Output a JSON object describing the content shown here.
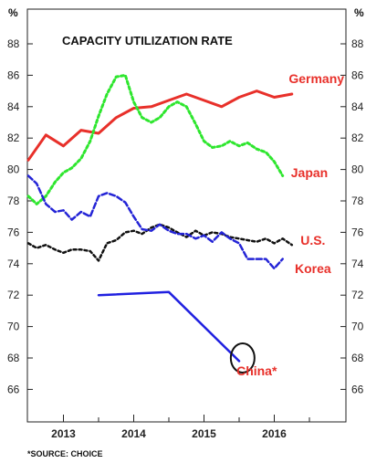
{
  "chart_data": {
    "type": "line",
    "title": "CAPACITY UTILIZATION RATE",
    "unit_left": "%",
    "unit_right": "%",
    "source": "*SOURCE: CHOICE",
    "ylim": [
      62,
      90
    ],
    "y_ticks": [
      66,
      68,
      70,
      72,
      74,
      76,
      78,
      80,
      82,
      84,
      86,
      88
    ],
    "xlim": [
      2012.5,
      2017.0
    ],
    "x_ticks": [
      2013,
      2014,
      2015,
      2016
    ],
    "x_tick_labels": [
      "2013",
      "2014",
      "2015",
      "2016"
    ],
    "grid": false,
    "series": [
      {
        "name": "Germany",
        "color": "#e8302a",
        "style": "solid",
        "width": 3,
        "points": [
          [
            2012.5,
            80.6
          ],
          [
            2012.75,
            82.2
          ],
          [
            2013.0,
            81.5
          ],
          [
            2013.25,
            82.5
          ],
          [
            2013.5,
            82.3
          ],
          [
            2013.75,
            83.3
          ],
          [
            2014.0,
            83.9
          ],
          [
            2014.25,
            84.0
          ],
          [
            2014.5,
            84.4
          ],
          [
            2014.75,
            84.8
          ],
          [
            2015.0,
            84.4
          ],
          [
            2015.25,
            84.0
          ],
          [
            2015.5,
            84.6
          ],
          [
            2015.75,
            85.0
          ],
          [
            2016.0,
            84.6
          ],
          [
            2016.25,
            84.8
          ]
        ]
      },
      {
        "name": "Japan",
        "color": "#2ee62e",
        "style": "dotted",
        "width": 3,
        "points": [
          [
            2012.5,
            78.3
          ],
          [
            2012.62,
            77.8
          ],
          [
            2012.75,
            78.3
          ],
          [
            2012.88,
            79.2
          ],
          [
            2013.0,
            79.8
          ],
          [
            2013.12,
            80.1
          ],
          [
            2013.25,
            80.7
          ],
          [
            2013.38,
            81.8
          ],
          [
            2013.5,
            83.4
          ],
          [
            2013.62,
            84.8
          ],
          [
            2013.75,
            85.9
          ],
          [
            2013.88,
            86.0
          ],
          [
            2014.0,
            84.3
          ],
          [
            2014.12,
            83.3
          ],
          [
            2014.25,
            83.0
          ],
          [
            2014.37,
            83.3
          ],
          [
            2014.5,
            84.0
          ],
          [
            2014.62,
            84.3
          ],
          [
            2014.75,
            84.0
          ],
          [
            2014.88,
            82.9
          ],
          [
            2015.0,
            81.8
          ],
          [
            2015.12,
            81.4
          ],
          [
            2015.25,
            81.5
          ],
          [
            2015.37,
            81.8
          ],
          [
            2015.5,
            81.5
          ],
          [
            2015.62,
            81.7
          ],
          [
            2015.75,
            81.3
          ],
          [
            2015.88,
            81.1
          ],
          [
            2016.0,
            80.5
          ],
          [
            2016.12,
            79.6
          ]
        ]
      },
      {
        "name": "U.S.",
        "color": "#111111",
        "style": "dotted",
        "width": 2.5,
        "points": [
          [
            2012.5,
            75.3
          ],
          [
            2012.62,
            75.0
          ],
          [
            2012.75,
            75.2
          ],
          [
            2012.88,
            74.9
          ],
          [
            2013.0,
            74.7
          ],
          [
            2013.12,
            74.9
          ],
          [
            2013.25,
            74.9
          ],
          [
            2013.38,
            74.8
          ],
          [
            2013.5,
            74.2
          ],
          [
            2013.62,
            75.3
          ],
          [
            2013.75,
            75.5
          ],
          [
            2013.88,
            76.0
          ],
          [
            2014.0,
            76.1
          ],
          [
            2014.12,
            75.9
          ],
          [
            2014.25,
            76.3
          ],
          [
            2014.37,
            76.5
          ],
          [
            2014.5,
            76.3
          ],
          [
            2014.62,
            76.0
          ],
          [
            2014.75,
            75.7
          ],
          [
            2014.88,
            76.1
          ],
          [
            2015.0,
            75.8
          ],
          [
            2015.12,
            76.0
          ],
          [
            2015.25,
            75.9
          ],
          [
            2015.37,
            75.7
          ],
          [
            2015.5,
            75.6
          ],
          [
            2015.62,
            75.5
          ],
          [
            2015.75,
            75.4
          ],
          [
            2015.88,
            75.6
          ],
          [
            2016.0,
            75.3
          ],
          [
            2016.12,
            75.6
          ],
          [
            2016.25,
            75.2
          ]
        ]
      },
      {
        "name": "Korea",
        "color": "#2424d6",
        "style": "dashed",
        "width": 2.5,
        "points": [
          [
            2012.5,
            79.6
          ],
          [
            2012.62,
            79.1
          ],
          [
            2012.75,
            77.8
          ],
          [
            2012.88,
            77.3
          ],
          [
            2013.0,
            77.4
          ],
          [
            2013.12,
            76.8
          ],
          [
            2013.25,
            77.3
          ],
          [
            2013.38,
            77.0
          ],
          [
            2013.5,
            78.3
          ],
          [
            2013.62,
            78.5
          ],
          [
            2013.75,
            78.3
          ],
          [
            2013.88,
            77.9
          ],
          [
            2014.0,
            77.0
          ],
          [
            2014.12,
            76.2
          ],
          [
            2014.25,
            76.1
          ],
          [
            2014.37,
            76.5
          ],
          [
            2014.5,
            76.1
          ],
          [
            2014.62,
            75.9
          ],
          [
            2014.75,
            75.9
          ],
          [
            2014.88,
            75.6
          ],
          [
            2015.0,
            75.8
          ],
          [
            2015.12,
            75.4
          ],
          [
            2015.25,
            76.0
          ],
          [
            2015.37,
            75.6
          ],
          [
            2015.5,
            75.3
          ],
          [
            2015.62,
            74.3
          ],
          [
            2015.75,
            74.3
          ],
          [
            2015.88,
            74.3
          ],
          [
            2016.0,
            73.7
          ],
          [
            2016.12,
            74.3
          ]
        ]
      },
      {
        "name": "China*",
        "color": "#2020e0",
        "style": "solid",
        "width": 2.5,
        "points": [
          [
            2013.5,
            72.0
          ],
          [
            2014.5,
            72.2
          ],
          [
            2015.5,
            67.8
          ]
        ]
      }
    ],
    "labels": [
      {
        "text": "Germany",
        "color": "#e8302a",
        "x": 2016.6,
        "y": 85.8
      },
      {
        "text": "Japan",
        "color": "#e8302a",
        "x": 2016.5,
        "y": 79.8
      },
      {
        "text": "U.S.",
        "color": "#e8302a",
        "x": 2016.55,
        "y": 75.5
      },
      {
        "text": "Korea",
        "color": "#e8302a",
        "x": 2016.55,
        "y": 73.7
      },
      {
        "text": "China*",
        "color": "#e8302a",
        "x": 2015.75,
        "y": 67.2
      }
    ],
    "highlight_ellipse": {
      "x": 2015.55,
      "y": 68.0,
      "color": "#111111"
    }
  }
}
